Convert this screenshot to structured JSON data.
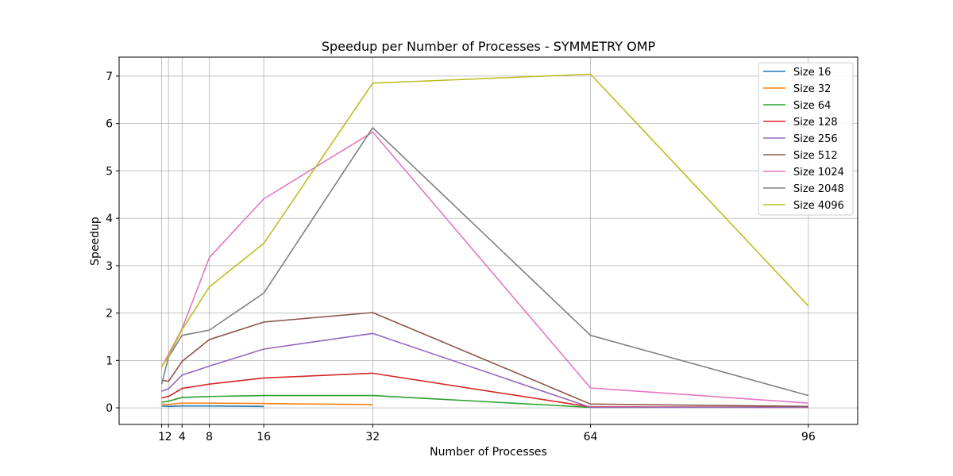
{
  "chart_data": {
    "type": "line",
    "title": "Speedup per Number of Processes - SYMMETRY OMP",
    "xlabel": "Number of Processes",
    "ylabel": "Speedup",
    "xlim": [
      -5.25,
      103.25
    ],
    "ylim": [
      -0.35,
      7.4
    ],
    "xticks": [
      1,
      2,
      4,
      8,
      16,
      32,
      64,
      96
    ],
    "xtick_labels": [
      "1",
      "2",
      "4",
      "8",
      "16",
      "32",
      "64",
      "96"
    ],
    "yticks": [
      0,
      1,
      2,
      3,
      4,
      5,
      6,
      7
    ],
    "ytick_labels": [
      "0",
      "1",
      "2",
      "3",
      "4",
      "5",
      "6",
      "7"
    ],
    "grid": true,
    "legend_position": "top-right",
    "series": [
      {
        "name": "Size 16",
        "color": "#1f77b4",
        "x": [
          1,
          2,
          4,
          8,
          16
        ],
        "y": [
          0.04,
          0.03,
          0.04,
          0.04,
          0.03
        ]
      },
      {
        "name": "Size 32",
        "color": "#ff7f0e",
        "x": [
          1,
          2,
          4,
          8,
          16,
          32
        ],
        "y": [
          0.08,
          0.07,
          0.1,
          0.1,
          0.09,
          0.07
        ]
      },
      {
        "name": "Size 64",
        "color": "#2ca02c",
        "x": [
          1,
          2,
          4,
          8,
          16,
          32,
          64,
          96
        ],
        "y": [
          0.12,
          0.14,
          0.22,
          0.24,
          0.26,
          0.26,
          0.01,
          0.02
        ]
      },
      {
        "name": "Size 128",
        "color": "#d62728",
        "x": [
          1,
          2,
          4,
          8,
          16,
          32,
          64,
          96
        ],
        "y": [
          0.21,
          0.24,
          0.41,
          0.5,
          0.63,
          0.73,
          0.02,
          0.01
        ]
      },
      {
        "name": "Size 256",
        "color": "#9467bd",
        "x": [
          1,
          2,
          4,
          8,
          16,
          32,
          64,
          96
        ],
        "y": [
          0.35,
          0.4,
          0.69,
          0.88,
          1.24,
          1.57,
          0.01,
          0.01
        ]
      },
      {
        "name": "Size 512",
        "color": "#8c564b",
        "x": [
          1,
          2,
          4,
          8,
          16,
          32,
          64,
          96
        ],
        "y": [
          0.58,
          0.56,
          0.98,
          1.44,
          1.81,
          2.01,
          0.08,
          0.03
        ]
      },
      {
        "name": "Size 1024",
        "color": "#e377c2",
        "x": [
          1,
          2,
          4,
          8,
          16,
          32,
          64,
          96
        ],
        "y": [
          0.86,
          1.13,
          1.67,
          3.17,
          4.41,
          5.82,
          0.42,
          0.1
        ]
      },
      {
        "name": "Size 2048",
        "color": "#7f7f7f",
        "x": [
          1,
          2,
          4,
          8,
          16,
          32,
          64,
          96
        ],
        "y": [
          0.5,
          1.07,
          1.53,
          1.64,
          2.42,
          5.91,
          1.53,
          0.26
        ]
      },
      {
        "name": "Size 4096",
        "color": "#bcbd22",
        "x": [
          1,
          2,
          4,
          8,
          16,
          32,
          64,
          96
        ],
        "y": [
          0.86,
          1.09,
          1.65,
          2.55,
          3.47,
          6.85,
          7.04,
          2.15
        ]
      }
    ]
  }
}
